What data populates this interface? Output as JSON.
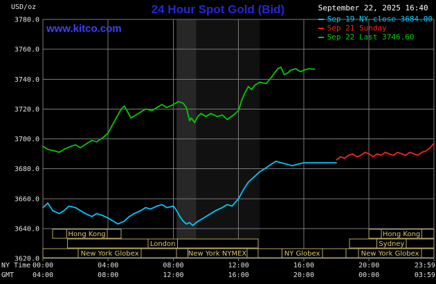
{
  "header": {
    "unit_label": "USD/oz",
    "title": "24 Hour Spot Gold (Bid)",
    "datetime": "September 22, 2025 16:40",
    "watermark": "www.kitco.com"
  },
  "legend": [
    {
      "label": "Sep 19 NY close 3684.00",
      "color": "#00c8ff"
    },
    {
      "label": "Sep 21 Sunday",
      "color": "#ff2020"
    },
    {
      "label": "Sep 22 Last 3746.60",
      "color": "#00cc00"
    }
  ],
  "chart_data": {
    "type": "line",
    "title": "24 Hour Spot Gold (Bid)",
    "ylabel": "USD/oz",
    "xlabel": "NY Time",
    "xlim": [
      0,
      23.983
    ],
    "ylim": [
      3620,
      3780
    ],
    "grid": true,
    "axis": {
      "ny_time_label": "NY Time",
      "gmt_label": "GMT",
      "tick_hours": [
        0,
        4,
        8,
        12,
        16,
        20,
        23.983
      ],
      "ny_ticks": [
        "00:00",
        "04:00",
        "08:00",
        "12:00",
        "16:00",
        "20:00",
        "23:59"
      ],
      "gmt_ticks": [
        "04:00",
        "08:00",
        "12:00",
        "16:00",
        "20:00",
        "00:00",
        "03:59"
      ],
      "y_ticks": [
        3620,
        3640,
        3660,
        3680,
        3700,
        3720,
        3740,
        3760,
        3780
      ]
    },
    "bands": [
      {
        "start": 8.2,
        "end": 13.3,
        "color": "#111111"
      },
      {
        "start": 8.2,
        "end": 9.4,
        "color": "#272727"
      }
    ],
    "series": [
      {
        "name": "Sep 19 NY close 3684.00",
        "color": "#00c8ff",
        "x": [
          0,
          0.3,
          0.6,
          1,
          1.3,
          1.6,
          2,
          2.3,
          2.6,
          3,
          3.3,
          3.6,
          4,
          4.3,
          4.6,
          5,
          5.3,
          5.6,
          6,
          6.3,
          6.6,
          7,
          7.3,
          7.6,
          8,
          8.2,
          8.4,
          8.6,
          8.8,
          9,
          9.2,
          9.4,
          9.7,
          10,
          10.3,
          10.6,
          11,
          11.3,
          11.6,
          12,
          12.3,
          12.6,
          13,
          13.3,
          13.6,
          14,
          14.3,
          14.6,
          15,
          15.3,
          15.6,
          16,
          16.5,
          17,
          17.5,
          18
        ],
        "y": [
          3654,
          3657,
          3652,
          3650,
          3652,
          3655,
          3654,
          3652,
          3650,
          3648,
          3650,
          3649,
          3647,
          3645,
          3643,
          3645,
          3648,
          3650,
          3652,
          3654,
          3653,
          3655,
          3656,
          3654,
          3655,
          3652,
          3648,
          3645,
          3643,
          3644,
          3642,
          3644,
          3646,
          3648,
          3650,
          3652,
          3654,
          3656,
          3655,
          3660,
          3666,
          3671,
          3675,
          3678,
          3680,
          3683,
          3685,
          3684,
          3683,
          3682,
          3683,
          3684,
          3684,
          3684,
          3684,
          3684
        ]
      },
      {
        "name": "Sep 21 Sunday",
        "color": "#ff2020",
        "x": [
          18,
          18.25,
          18.5,
          18.75,
          19,
          19.25,
          19.5,
          19.75,
          20,
          20.25,
          20.5,
          20.75,
          21,
          21.25,
          21.5,
          21.75,
          22,
          22.25,
          22.5,
          22.75,
          23,
          23.25,
          23.5,
          23.75,
          23.98
        ],
        "y": [
          3686,
          3688,
          3687,
          3689,
          3690,
          3688,
          3689,
          3691,
          3690,
          3688,
          3690,
          3689,
          3691,
          3690,
          3689,
          3691,
          3690,
          3689,
          3691,
          3690,
          3689,
          3691,
          3692,
          3694,
          3697
        ]
      },
      {
        "name": "Sep 22 Last 3746.60",
        "color": "#00cc00",
        "x": [
          0,
          0.3,
          0.7,
          1,
          1.3,
          1.7,
          2,
          2.3,
          2.7,
          3,
          3.3,
          3.7,
          4,
          4.2,
          4.5,
          4.8,
          5,
          5.2,
          5.4,
          5.7,
          6,
          6.3,
          6.7,
          7,
          7.3,
          7.6,
          8,
          8.3,
          8.6,
          8.8,
          9,
          9.1,
          9.3,
          9.5,
          9.7,
          10,
          10.3,
          10.7,
          11,
          11.3,
          11.7,
          12,
          12.2,
          12.4,
          12.6,
          12.8,
          13,
          13.3,
          13.7,
          14,
          14.2,
          14.4,
          14.6,
          14.8,
          15,
          15.2,
          15.5,
          15.8,
          16,
          16.3,
          16.67
        ],
        "y": [
          3695,
          3693,
          3692,
          3691,
          3693,
          3695,
          3696,
          3694,
          3697,
          3699,
          3698,
          3701,
          3704,
          3708,
          3714,
          3720,
          3722,
          3718,
          3714,
          3716,
          3718,
          3720,
          3719,
          3721,
          3723,
          3721,
          3723,
          3725,
          3724,
          3721,
          3712,
          3714,
          3711,
          3715,
          3717,
          3715,
          3717,
          3715,
          3716,
          3713,
          3716,
          3719,
          3726,
          3731,
          3735,
          3733,
          3736,
          3738,
          3737,
          3741,
          3744,
          3747,
          3748,
          3743,
          3744,
          3746,
          3747,
          3745,
          3746,
          3747,
          3746.6
        ]
      }
    ],
    "sessions": [
      {
        "row": 0,
        "start": 0.6,
        "end": 4.8,
        "label": "Hong Kong"
      },
      {
        "row": 0,
        "start": 20,
        "end": 23.983,
        "label": "Hong Kong"
      },
      {
        "row": 1,
        "start": 1.5,
        "end": 13.2,
        "label": "London"
      },
      {
        "row": 1,
        "start": 18.8,
        "end": 23.983,
        "label": "Sydney"
      },
      {
        "row": 2,
        "start": 0,
        "end": 8.2,
        "label": "New York Globex"
      },
      {
        "row": 2,
        "start": 8.2,
        "end": 13.2,
        "label": "New York NYMEX"
      },
      {
        "row": 2,
        "start": 13.2,
        "end": 18.6,
        "label": "NY Globex"
      },
      {
        "row": 2,
        "start": 18.6,
        "end": 23.983,
        "label": "New York Globex"
      }
    ]
  }
}
